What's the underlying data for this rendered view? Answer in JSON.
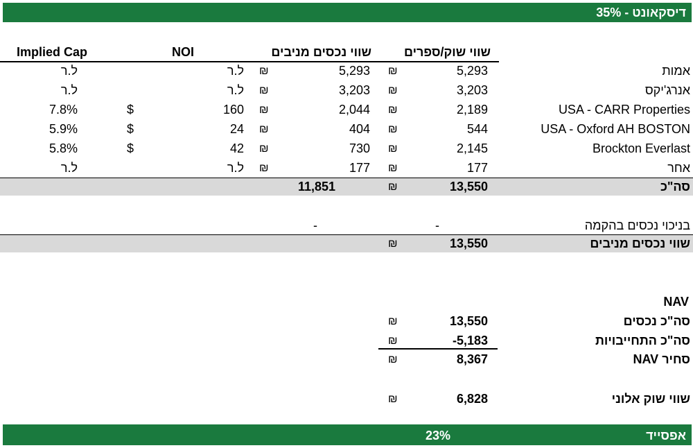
{
  "top_band": {
    "label": "דיסקאונט - 35%"
  },
  "headers": {
    "implied_cap": "Implied Cap",
    "noi": "NOI",
    "rental_value": "שווי נכסים מניבים",
    "market_value": "שווי שוק/ספרים"
  },
  "currency_symbol": "₪",
  "dollar_symbol": "$",
  "rows": [
    {
      "name": "אמות",
      "market": "5,293",
      "rental": "5,293",
      "noi": "ל.ר",
      "cap": "ל.ר",
      "dollar": ""
    },
    {
      "name": "אנרג'יקס",
      "market": "3,203",
      "rental": "3,203",
      "noi": "ל.ר",
      "cap": "ל.ר",
      "dollar": ""
    },
    {
      "name": "USA - CARR Properties",
      "market": "2,189",
      "rental": "2,044",
      "noi": "160",
      "cap": "7.8%",
      "dollar": "$"
    },
    {
      "name": "USA - Oxford AH BOSTON",
      "market": "544",
      "rental": "404",
      "noi": "24",
      "cap": "5.9%",
      "dollar": "$"
    },
    {
      "name": "Brockton Everlast",
      "market": "2,145",
      "rental": "730",
      "noi": "42",
      "cap": "5.8%",
      "dollar": "$"
    },
    {
      "name": "אחר",
      "market": "177",
      "rental": "177",
      "noi": "ל.ר",
      "cap": "ל.ר",
      "dollar": ""
    }
  ],
  "total": {
    "name": "סה\"כ",
    "market": "13,550",
    "rental": "11,851"
  },
  "construction": {
    "name": "בניכוי נכסים בהקמה",
    "market": "-",
    "rental": "-"
  },
  "rental_props": {
    "name": "שווי נכסים מניבים",
    "market": "13,550"
  },
  "nav": {
    "title": "NAV",
    "total_assets_label": "סה\"כ נכסים",
    "total_assets": "13,550",
    "liabilities_label": "סה\"כ התחייבויות",
    "liabilities": "-5,183",
    "nav_label": "NAV סחיר",
    "nav_value": "8,367"
  },
  "market_cap": {
    "label": "שווי שוק אלוני",
    "value": "6,828"
  },
  "bottom_band": {
    "label": "אפסייד",
    "value": "23%"
  }
}
